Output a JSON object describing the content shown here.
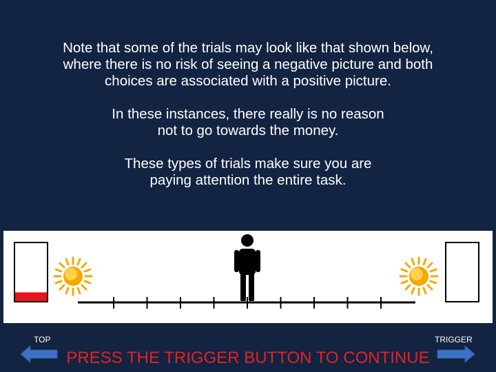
{
  "instructions": {
    "paragraph1": [
      "Note that some of the trials may look like that shown below,",
      "where there is no risk of seeing a negative picture and both",
      "choices are associated with a positive picture."
    ],
    "paragraph2": [
      "In these instances, there really is no reason",
      "not to go towards the money."
    ],
    "paragraph3": [
      "These types of trials make sure you are",
      "paying attention the entire task."
    ]
  },
  "controls": {
    "left_label": "TOP",
    "right_label": "TRIGGER",
    "continue_prompt": "PRESS THE TRIGGER BUTTON TO CONTINUE"
  },
  "task_display": {
    "left_money_level": 0.15,
    "right_money_level": 0,
    "left_outcome_icon": "sun-icon",
    "right_outcome_icon": "sun-icon",
    "avatar_icon": "person-icon",
    "tick_count": 9,
    "avatar_position_index": 5
  },
  "colors": {
    "background": "#132342",
    "text": "#ffffff",
    "prompt": "#e32222",
    "money_fill": "#e8141c",
    "sun": "#f5a800",
    "arrow": "#3b72c4"
  }
}
